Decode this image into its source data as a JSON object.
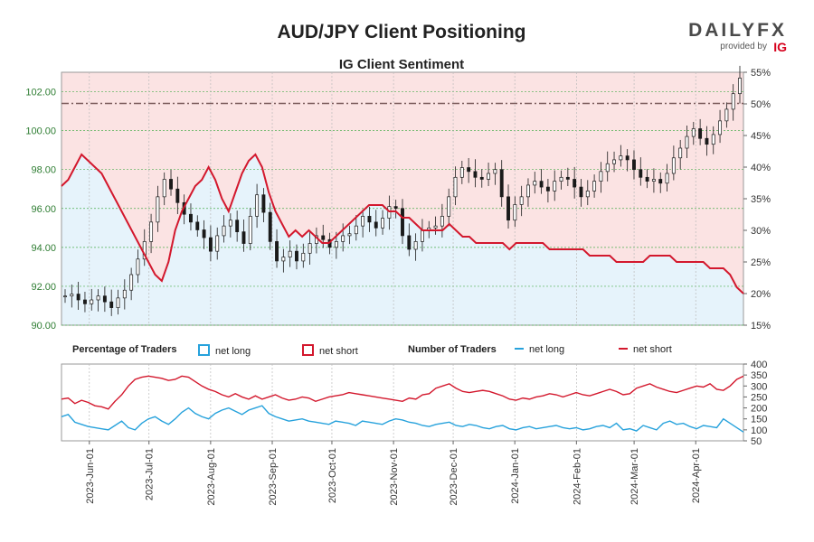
{
  "header": {
    "title": "AUD/JPY Client Positioning",
    "subtitle": "IG Client Sentiment",
    "logo": {
      "brand_text": "DAILYFX",
      "provided_by": "provided by",
      "ig_text": "IG"
    }
  },
  "legend": {
    "pct_title": "Percentage of Traders",
    "pct_long": "net long",
    "pct_short": "net short",
    "num_title": "Number of Traders",
    "num_long": "net long",
    "num_short": "net short"
  },
  "colors": {
    "price_axis": "#2e7d32",
    "short_fill": "#fbe3e3",
    "long_fill": "#e6f3fb",
    "net_short_line": "#d3182d",
    "net_long_line": "#27a2dc",
    "candles": "#1a1a1a",
    "grid": "#4caf50"
  },
  "chart_data": [
    {
      "type": "line",
      "title": "AUD/JPY Client Positioning",
      "subtitle": "IG Client Sentiment",
      "left_axis": {
        "ticks": [
          "90.00",
          "92.00",
          "94.00",
          "96.00",
          "98.00",
          "100.00",
          "102.00"
        ],
        "range": [
          90,
          103
        ]
      },
      "right_axis": {
        "ticks": [
          "15%",
          "20%",
          "25%",
          "30%",
          "35%",
          "40%",
          "45%",
          "50%",
          "55%"
        ],
        "range": [
          15,
          55
        ]
      },
      "x_ticks": [
        "2023-Jun-01",
        "2023-Jul-01",
        "2023-Aug-01",
        "2023-Sep-01",
        "2023-Oct-01",
        "2023-Nov-01",
        "2023-Dec-01",
        "2024-Jan-01",
        "2024-Feb-01",
        "2024-Mar-01",
        "2024-Apr-01"
      ],
      "x_range": [
        "2023-May-18",
        "2024-Apr-25"
      ],
      "reference_line_pct": 50,
      "reference_line_price": 101.4,
      "series": [
        {
          "name": "AUD/JPY",
          "kind": "price",
          "values": [
            91.5,
            91.6,
            91.3,
            91.1,
            91.3,
            91.5,
            91.2,
            90.9,
            91.4,
            91.8,
            92.6,
            93.4,
            94.3,
            95.3,
            96.6,
            97.5,
            97.0,
            96.3,
            95.7,
            95.3,
            94.9,
            94.5,
            93.8,
            94.6,
            95.1,
            95.4,
            94.8,
            94.2,
            95.6,
            96.7,
            95.8,
            94.3,
            93.3,
            93.5,
            93.8,
            93.3,
            93.7,
            94.2,
            94.6,
            94.4,
            94.0,
            94.3,
            94.6,
            94.7,
            95.1,
            95.6,
            95.3,
            95.0,
            95.5,
            96.1,
            96.0,
            94.6,
            93.9,
            94.3,
            94.9,
            95.0,
            95.1,
            95.6,
            96.6,
            97.6,
            98.1,
            97.9,
            97.6,
            97.5,
            97.8,
            98.0,
            96.6,
            95.4,
            96.2,
            96.6,
            97.2,
            97.4,
            97.1,
            96.9,
            97.4,
            97.6,
            97.5,
            97.1,
            96.6,
            96.9,
            97.4,
            97.9,
            98.3,
            98.5,
            98.7,
            98.5,
            98.0,
            97.6,
            97.4,
            97.5,
            97.3,
            97.8,
            98.6,
            99.1,
            99.7,
            100.1,
            99.6,
            99.3,
            99.8,
            100.5,
            101.1,
            101.9,
            102.7
          ]
        },
        {
          "name": "net long %",
          "kind": "sentiment",
          "values": [
            37,
            38,
            40,
            42,
            41,
            40,
            39,
            37,
            35,
            33,
            31,
            29,
            27,
            25,
            23,
            22,
            25,
            30,
            33,
            35,
            37,
            38,
            40,
            38,
            35,
            33,
            36,
            39,
            41,
            42,
            40,
            36,
            33,
            31,
            29,
            30,
            29,
            30,
            29,
            28,
            28,
            29,
            30,
            31,
            32,
            33,
            34,
            34,
            34,
            33,
            33,
            32,
            32,
            31,
            30,
            30,
            30,
            30,
            31,
            30,
            29,
            29,
            28,
            28,
            28,
            28,
            28,
            27,
            28,
            28,
            28,
            28,
            28,
            27,
            27,
            27,
            27,
            27,
            27,
            26,
            26,
            26,
            26,
            25,
            25,
            25,
            25,
            25,
            26,
            26,
            26,
            26,
            25,
            25,
            25,
            25,
            25,
            24,
            24,
            24,
            23,
            21,
            20
          ]
        },
        {
          "name": "net short %",
          "kind": "sentiment",
          "values": [
            63,
            62,
            60,
            58,
            59,
            60,
            61,
            63,
            65,
            67,
            69,
            71,
            73,
            75,
            77,
            78,
            75,
            70,
            67,
            65,
            63,
            62,
            60,
            62,
            65,
            67,
            64,
            61,
            59,
            58,
            60,
            64,
            67,
            69,
            71,
            70,
            71,
            70,
            71,
            72,
            72,
            71,
            70,
            69,
            68,
            67,
            66,
            66,
            66,
            67,
            67,
            68,
            68,
            69,
            70,
            70,
            70,
            70,
            69,
            70,
            71,
            71,
            72,
            72,
            72,
            72,
            72,
            73,
            72,
            72,
            72,
            72,
            72,
            73,
            73,
            73,
            73,
            73,
            73,
            74,
            74,
            74,
            74,
            75,
            75,
            75,
            75,
            75,
            74,
            74,
            74,
            74,
            75,
            75,
            75,
            75,
            75,
            76,
            76,
            76,
            77,
            79,
            80
          ]
        }
      ]
    },
    {
      "type": "line",
      "title": "Number of Traders",
      "y_ticks": [
        "50",
        "100",
        "150",
        "200",
        "250",
        "300",
        "350",
        "400"
      ],
      "ylim": [
        50,
        400
      ],
      "series": [
        {
          "name": "net long",
          "values": [
            160,
            170,
            135,
            125,
            115,
            110,
            105,
            100,
            120,
            140,
            110,
            100,
            130,
            150,
            160,
            140,
            125,
            150,
            180,
            200,
            175,
            160,
            150,
            175,
            190,
            200,
            185,
            170,
            190,
            200,
            210,
            175,
            160,
            150,
            140,
            145,
            150,
            140,
            135,
            130,
            125,
            140,
            135,
            130,
            120,
            140,
            135,
            130,
            125,
            140,
            150,
            145,
            135,
            130,
            120,
            115,
            125,
            130,
            135,
            120,
            115,
            125,
            120,
            110,
            105,
            115,
            120,
            105,
            100,
            110,
            115,
            105,
            110,
            115,
            120,
            110,
            105,
            110,
            100,
            105,
            115,
            120,
            110,
            130,
            100,
            105,
            95,
            120,
            110,
            100,
            130,
            140,
            125,
            130,
            115,
            105,
            120,
            115,
            110,
            150,
            130,
            110,
            90
          ]
        },
        {
          "name": "net short",
          "values": [
            240,
            245,
            220,
            235,
            225,
            210,
            205,
            195,
            230,
            260,
            300,
            330,
            340,
            345,
            340,
            335,
            325,
            330,
            345,
            340,
            320,
            300,
            285,
            275,
            260,
            250,
            265,
            250,
            240,
            255,
            240,
            250,
            260,
            245,
            235,
            240,
            250,
            245,
            230,
            240,
            250,
            255,
            260,
            270,
            265,
            260,
            255,
            250,
            245,
            240,
            235,
            230,
            245,
            240,
            260,
            265,
            290,
            300,
            310,
            290,
            275,
            270,
            275,
            280,
            275,
            265,
            255,
            240,
            235,
            245,
            240,
            250,
            255,
            265,
            260,
            250,
            260,
            270,
            260,
            255,
            265,
            275,
            285,
            275,
            260,
            265,
            290,
            300,
            310,
            295,
            285,
            275,
            270,
            280,
            290,
            300,
            295,
            310,
            285,
            280,
            300,
            330,
            345
          ]
        }
      ]
    }
  ]
}
